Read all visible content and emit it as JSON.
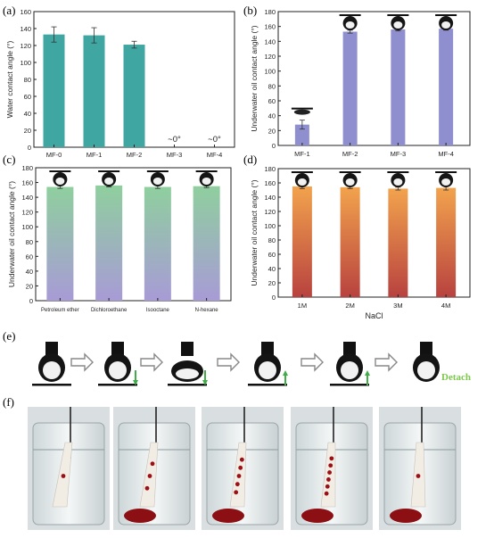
{
  "colors": {
    "teal": "#3fa6a1",
    "lavender": "#8f8fd0",
    "green_top": "#8fcf9e",
    "purple_bottom": "#a89bd6",
    "orange_top": "#f2a34d",
    "red_bottom": "#b8423f",
    "detach_green": "#7cc84a",
    "arrow_green": "#3fae49",
    "blood": "#9b1016"
  },
  "panels": {
    "a_label": "(a)",
    "b_label": "(b)",
    "c_label": "(c)",
    "d_label": "(d)",
    "e_label": "(e)",
    "f_label": "(f)"
  },
  "stage_e": {
    "detach_text": "Detach",
    "steps": [
      {
        "arrow": "none"
      },
      {
        "arrow": "down"
      },
      {
        "arrow": "down"
      },
      {
        "arrow": "up"
      },
      {
        "arrow": "up"
      },
      {
        "arrow": "none"
      }
    ]
  },
  "photos_f": {
    "count": 5,
    "icons": [
      "beaker-photo-1",
      "beaker-photo-2",
      "beaker-photo-3",
      "beaker-photo-4",
      "beaker-photo-5"
    ]
  },
  "chart_data": [
    {
      "id": "a",
      "type": "bar",
      "categories": [
        "MF-0",
        "MF-1",
        "MF-2",
        "MF-3",
        "MF-4"
      ],
      "values": [
        133,
        132,
        121,
        0,
        0
      ],
      "errors": [
        9,
        9,
        4,
        0,
        0
      ],
      "annotations": [
        "",
        "",
        "",
        "~0°",
        "~0°"
      ],
      "ylabel": "Water contact angle (°)",
      "xlabel": "",
      "ylim": [
        0,
        160
      ],
      "yticks": [
        0,
        20,
        40,
        60,
        80,
        100,
        120,
        140,
        160
      ],
      "fill": "solid-teal"
    },
    {
      "id": "b",
      "type": "bar",
      "categories": [
        "MF-1",
        "MF-2",
        "MF-3",
        "MF-4"
      ],
      "values": [
        28,
        153,
        156,
        157
      ],
      "errors": [
        6,
        2,
        2,
        2
      ],
      "ylabel": "Underwater oil contact angle (°)",
      "xlabel": "",
      "ylim": [
        0,
        180
      ],
      "yticks": [
        0,
        20,
        40,
        60,
        80,
        100,
        120,
        140,
        160,
        180
      ],
      "fill": "solid-lavender"
    },
    {
      "id": "c",
      "type": "bar",
      "categories": [
        "Petroleum ether",
        "Dichloroethane",
        "Isooctane",
        "N-hexane"
      ],
      "values": [
        154,
        156,
        154,
        155
      ],
      "errors": [
        2,
        2,
        2,
        2
      ],
      "ylabel": "Underwater oil contact angle (°)",
      "xlabel": "",
      "ylim": [
        0,
        180
      ],
      "yticks": [
        0,
        20,
        40,
        60,
        80,
        100,
        120,
        140,
        160,
        180
      ],
      "fill": "gradient-green-purple"
    },
    {
      "id": "d",
      "type": "bar",
      "categories": [
        "1M",
        "2M",
        "3M",
        "4M"
      ],
      "values": [
        155,
        154,
        152,
        153
      ],
      "errors": [
        3,
        2,
        2,
        3
      ],
      "ylabel": "Underwater oil contact angle (°)",
      "xlabel": "NaCl",
      "ylim": [
        0,
        180
      ],
      "yticks": [
        0,
        20,
        40,
        60,
        80,
        100,
        120,
        140,
        160,
        180
      ],
      "fill": "gradient-orange-red"
    }
  ]
}
